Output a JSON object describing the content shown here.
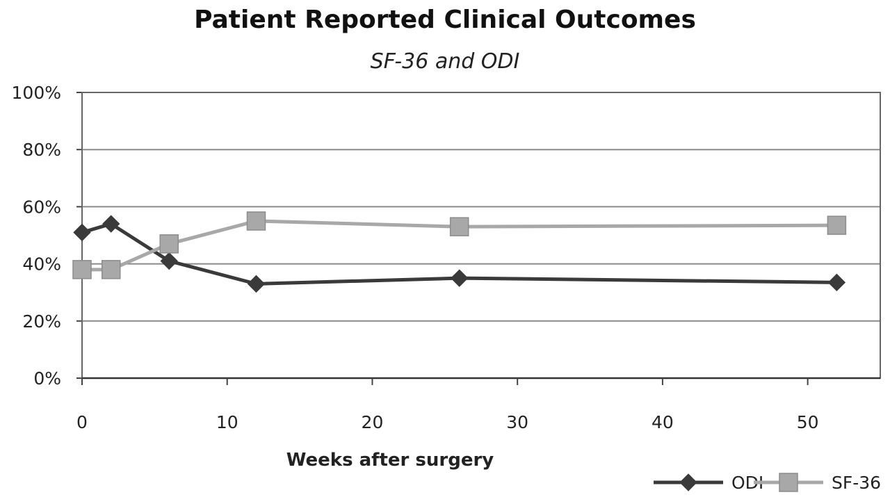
{
  "chart_data": {
    "type": "line",
    "title": "Patient Reported Clinical Outcomes",
    "subtitle": "SF-36 and ODI",
    "xlabel": "Weeks after surgery",
    "ylabel": "",
    "xlim": [
      0,
      55
    ],
    "ylim": [
      0,
      100
    ],
    "xticks": [
      0,
      10,
      20,
      30,
      40,
      50
    ],
    "xtick_labels": [
      "0",
      "10",
      "20",
      "30",
      "40",
      "50"
    ],
    "yticks": [
      0,
      20,
      40,
      60,
      80,
      100
    ],
    "ytick_labels": [
      "0%",
      "20%",
      "40%",
      "60%",
      "80%",
      "100%"
    ],
    "grid": "horizontal",
    "legend_position": "bottom-right",
    "series": [
      {
        "name": "ODI",
        "marker": "diamond",
        "color": "#3a3a3a",
        "x": [
          0,
          2,
          6,
          12,
          26,
          52
        ],
        "values": [
          51,
          54,
          41,
          33,
          35,
          33.5
        ]
      },
      {
        "name": "SF-36",
        "marker": "square",
        "color": "#a8a8a8",
        "x": [
          0,
          2,
          6,
          12,
          26,
          52
        ],
        "values": [
          38,
          38,
          47,
          55,
          53,
          53.5
        ]
      }
    ]
  }
}
